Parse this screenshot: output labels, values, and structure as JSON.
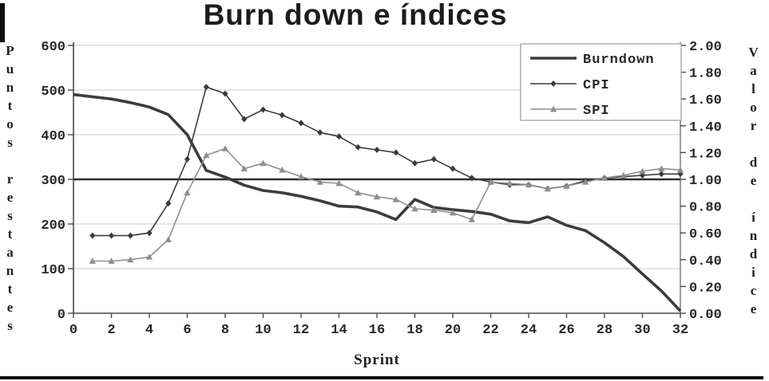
{
  "chart_data": {
    "type": "line",
    "title": "Burn down e índices",
    "xlabel": "Sprint",
    "ylabel_left": "Puntos restantes",
    "ylabel_right": "Valor de índice",
    "xlim": [
      0,
      32
    ],
    "ylim_left": [
      0,
      600
    ],
    "ylim_right": [
      0,
      2
    ],
    "x_ticks": [
      0,
      2,
      4,
      6,
      8,
      10,
      12,
      14,
      16,
      18,
      20,
      22,
      24,
      26,
      28,
      30,
      32
    ],
    "yleft_ticks": [
      0,
      100,
      200,
      300,
      400,
      500,
      600
    ],
    "yright_ticks": [
      "0.00",
      "0.20",
      "0.40",
      "0.60",
      "0.80",
      "1.00",
      "1.20",
      "1.40",
      "1.60",
      "1.80",
      "2.00"
    ],
    "grid": true,
    "legend_position": "top-right",
    "reference_line": {
      "axis": "right",
      "value": 1.0
    },
    "colors": {
      "burndown": "#3c3c3c",
      "cpi": "#3b3b3b",
      "spi": "#8f8f8f",
      "grid": "#cbcbcb",
      "axis": "#4a4a4a",
      "reference": "#2e2e2e"
    },
    "series": [
      {
        "name": "Burndown",
        "axis": "left",
        "marker": "none",
        "color": "#3c3c3c",
        "width": 3.6,
        "x": [
          0,
          1,
          2,
          3,
          4,
          5,
          6,
          7,
          8,
          9,
          10,
          11,
          12,
          13,
          14,
          15,
          16,
          17,
          18,
          19,
          20,
          21,
          22,
          23,
          24,
          25,
          26,
          27,
          28,
          29,
          30,
          31,
          32
        ],
        "values": [
          490,
          485,
          480,
          472,
          462,
          445,
          400,
          320,
          305,
          287,
          275,
          270,
          262,
          252,
          240,
          238,
          227,
          210,
          255,
          237,
          232,
          228,
          222,
          207,
          203,
          216,
          197,
          185,
          158,
          127,
          88,
          50,
          5
        ]
      },
      {
        "name": "CPI",
        "axis": "right",
        "marker": "diamond",
        "color": "#3b3b3b",
        "width": 1.6,
        "x": [
          1,
          2,
          3,
          4,
          5,
          6,
          7,
          8,
          9,
          10,
          11,
          12,
          13,
          14,
          15,
          16,
          17,
          18,
          19,
          20,
          21,
          22,
          23,
          24,
          25,
          26,
          27,
          28,
          29,
          30,
          31,
          32
        ],
        "values": [
          0.58,
          0.58,
          0.58,
          0.6,
          0.82,
          1.15,
          1.69,
          1.64,
          1.45,
          1.52,
          1.48,
          1.42,
          1.35,
          1.32,
          1.24,
          1.22,
          1.2,
          1.12,
          1.15,
          1.08,
          1.01,
          0.98,
          0.96,
          0.96,
          0.93,
          0.95,
          0.99,
          1.01,
          1.02,
          1.03,
          1.04,
          1.04
        ]
      },
      {
        "name": "SPI",
        "axis": "right",
        "marker": "triangle",
        "color": "#8f8f8f",
        "width": 1.6,
        "x": [
          1,
          2,
          3,
          4,
          5,
          6,
          7,
          8,
          9,
          10,
          11,
          12,
          13,
          14,
          15,
          16,
          17,
          18,
          19,
          20,
          21,
          22,
          23,
          24,
          25,
          26,
          27,
          28,
          29,
          30,
          31,
          32
        ],
        "values": [
          0.39,
          0.39,
          0.4,
          0.42,
          0.55,
          0.9,
          1.18,
          1.23,
          1.08,
          1.12,
          1.07,
          1.02,
          0.98,
          0.97,
          0.9,
          0.87,
          0.85,
          0.78,
          0.77,
          0.75,
          0.7,
          0.98,
          0.97,
          0.96,
          0.93,
          0.95,
          0.98,
          1.01,
          1.03,
          1.06,
          1.08,
          1.07
        ]
      }
    ]
  }
}
